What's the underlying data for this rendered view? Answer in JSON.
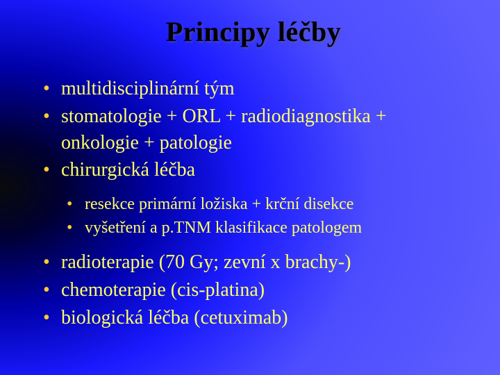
{
  "slide": {
    "title": "Principy léčby",
    "bullets_level1": [
      "multidisciplinární tým",
      "stomatologie + ORL + radiodiagnostika + onkologie + patologie",
      "chirurgická léčba"
    ],
    "bullets_level2": [
      "resekce primární ložiska + krční disekce",
      "vyšetření a p.TNM klasifikace patologem"
    ],
    "bullets_level1_after": [
      "radioterapie (70 Gy; zevní x brachy-)",
      "chemoterapie (cis-platina)",
      "biologická léčba (cetuximab)"
    ]
  },
  "style": {
    "background_gradient": {
      "type": "radial",
      "center": "left-middle",
      "stops": [
        "#0a0a0a",
        "#000033",
        "#0000aa",
        "#1a1aff",
        "#4d4dff",
        "#6666ff"
      ]
    },
    "title_color": "#000000",
    "title_fontsize": 40,
    "bullet_color": "#ffff66",
    "bullet_marker_color": "#ffcc33",
    "level1_fontsize": 28,
    "level2_fontsize": 24,
    "font_family": "Times New Roman"
  }
}
